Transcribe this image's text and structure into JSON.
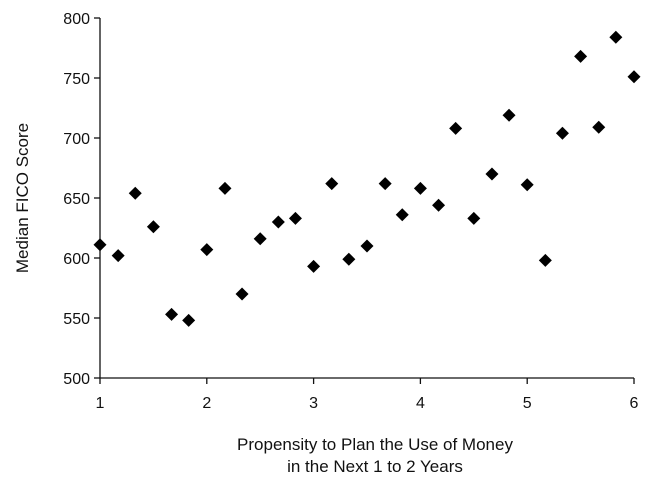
{
  "chart_data": {
    "type": "scatter",
    "title": "",
    "xlabel_lines": [
      "Propensity to Plan the Use of Money",
      "in the Next 1 to 2 Years"
    ],
    "ylabel": "Median FICO Score",
    "xlim": [
      1,
      6
    ],
    "ylim": [
      500,
      800
    ],
    "x_ticks": [
      1,
      2,
      3,
      4,
      5,
      6
    ],
    "y_ticks": [
      500,
      550,
      600,
      650,
      700,
      750,
      800
    ],
    "grid": false,
    "legend": "none",
    "marker": "diamond",
    "marker_color": "#000000",
    "points": [
      {
        "x": 1.0,
        "y": 611
      },
      {
        "x": 1.17,
        "y": 602
      },
      {
        "x": 1.33,
        "y": 654
      },
      {
        "x": 1.5,
        "y": 626
      },
      {
        "x": 1.67,
        "y": 553
      },
      {
        "x": 1.83,
        "y": 548
      },
      {
        "x": 2.0,
        "y": 607
      },
      {
        "x": 2.17,
        "y": 658
      },
      {
        "x": 2.33,
        "y": 570
      },
      {
        "x": 2.5,
        "y": 616
      },
      {
        "x": 2.67,
        "y": 630
      },
      {
        "x": 2.83,
        "y": 633
      },
      {
        "x": 3.0,
        "y": 593
      },
      {
        "x": 3.17,
        "y": 662
      },
      {
        "x": 3.33,
        "y": 599
      },
      {
        "x": 3.5,
        "y": 610
      },
      {
        "x": 3.67,
        "y": 662
      },
      {
        "x": 3.83,
        "y": 636
      },
      {
        "x": 4.0,
        "y": 658
      },
      {
        "x": 4.17,
        "y": 644
      },
      {
        "x": 4.33,
        "y": 708
      },
      {
        "x": 4.5,
        "y": 633
      },
      {
        "x": 4.67,
        "y": 670
      },
      {
        "x": 4.83,
        "y": 719
      },
      {
        "x": 5.0,
        "y": 661
      },
      {
        "x": 5.17,
        "y": 598
      },
      {
        "x": 5.33,
        "y": 704
      },
      {
        "x": 5.5,
        "y": 768
      },
      {
        "x": 5.67,
        "y": 709
      },
      {
        "x": 5.83,
        "y": 784
      },
      {
        "x": 6.0,
        "y": 751
      }
    ]
  }
}
